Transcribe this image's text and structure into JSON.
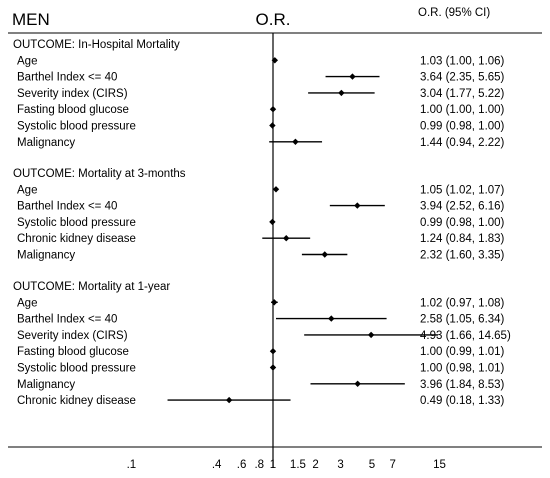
{
  "chart_data": {
    "type": "forest",
    "title": "MEN",
    "center_label": "O.R.",
    "ci_header": "O.R. (95% CI)",
    "reference_line": 1,
    "x_scale": "log",
    "xlim": [
      0.05,
      20
    ],
    "x_ticks": [
      ".1",
      ".4",
      ".6",
      ".8",
      "1",
      "1.5",
      "2",
      "3",
      "5",
      "7",
      "15"
    ],
    "groups": [
      {
        "outcome": "OUTCOME: In-Hospital Mortality",
        "rows": [
          {
            "label": "Age",
            "or": 1.03,
            "lo": 1.0,
            "hi": 1.06,
            "ci_text": "1.03 (1.00, 1.06)"
          },
          {
            "label": "Barthel Index <= 40",
            "or": 3.64,
            "lo": 2.35,
            "hi": 5.65,
            "ci_text": "3.64 (2.35, 5.65)"
          },
          {
            "label": "Severity index (CIRS)",
            "or": 3.04,
            "lo": 1.77,
            "hi": 5.22,
            "ci_text": "3.04 (1.77, 5.22)"
          },
          {
            "label": "Fasting blood glucose",
            "or": 1.0,
            "lo": 1.0,
            "hi": 1.0,
            "ci_text": "1.00 (1.00, 1.00)"
          },
          {
            "label": "Systolic blood pressure",
            "or": 0.99,
            "lo": 0.98,
            "hi": 1.0,
            "ci_text": "0.99 (0.98, 1.00)"
          },
          {
            "label": "Malignancy",
            "or": 1.44,
            "lo": 0.94,
            "hi": 2.22,
            "ci_text": "1.44 (0.94, 2.22)"
          }
        ]
      },
      {
        "outcome": "OUTCOME: Mortality at 3-months",
        "rows": [
          {
            "label": "Age",
            "or": 1.05,
            "lo": 1.02,
            "hi": 1.07,
            "ci_text": "1.05 (1.02, 1.07)"
          },
          {
            "label": "Barthel Index <= 40",
            "or": 3.94,
            "lo": 2.52,
            "hi": 6.16,
            "ci_text": "3.94 (2.52, 6.16)"
          },
          {
            "label": "Systolic blood pressure",
            "or": 0.99,
            "lo": 0.98,
            "hi": 1.0,
            "ci_text": "0.99 (0.98, 1.00)"
          },
          {
            "label": "Chronic kidney disease",
            "or": 1.24,
            "lo": 0.84,
            "hi": 1.83,
            "ci_text": "1.24 (0.84, 1.83)"
          },
          {
            "label": "Malignancy",
            "or": 2.32,
            "lo": 1.6,
            "hi": 3.35,
            "ci_text": "2.32 (1.60, 3.35)"
          }
        ]
      },
      {
        "outcome": "OUTCOME: Mortality at 1-year",
        "rows": [
          {
            "label": "Age",
            "or": 1.02,
            "lo": 0.97,
            "hi": 1.08,
            "ci_text": "1.02 (0.97, 1.08)"
          },
          {
            "label": "Barthel Index <= 40",
            "or": 2.58,
            "lo": 1.05,
            "hi": 6.34,
            "ci_text": "2.58 (1.05, 6.34)"
          },
          {
            "label": "Severity index (CIRS)",
            "or": 4.93,
            "lo": 1.66,
            "hi": 14.65,
            "ci_text": "4.93 (1.66, 14.65)"
          },
          {
            "label": "Fasting blood glucose",
            "or": 1.0,
            "lo": 0.99,
            "hi": 1.01,
            "ci_text": "1.00 (0.99, 1.01)"
          },
          {
            "label": "Systolic blood pressure",
            "or": 1.0,
            "lo": 0.98,
            "hi": 1.01,
            "ci_text": "1.00 (0.98, 1.01)"
          },
          {
            "label": "Malignancy",
            "or": 3.96,
            "lo": 1.84,
            "hi": 8.53,
            "ci_text": "3.96 (1.84, 8.53)"
          },
          {
            "label": "Chronic kidney disease",
            "or": 0.49,
            "lo": 0.18,
            "hi": 1.33,
            "ci_text": "0.49 (0.18, 1.33)"
          }
        ]
      }
    ]
  }
}
